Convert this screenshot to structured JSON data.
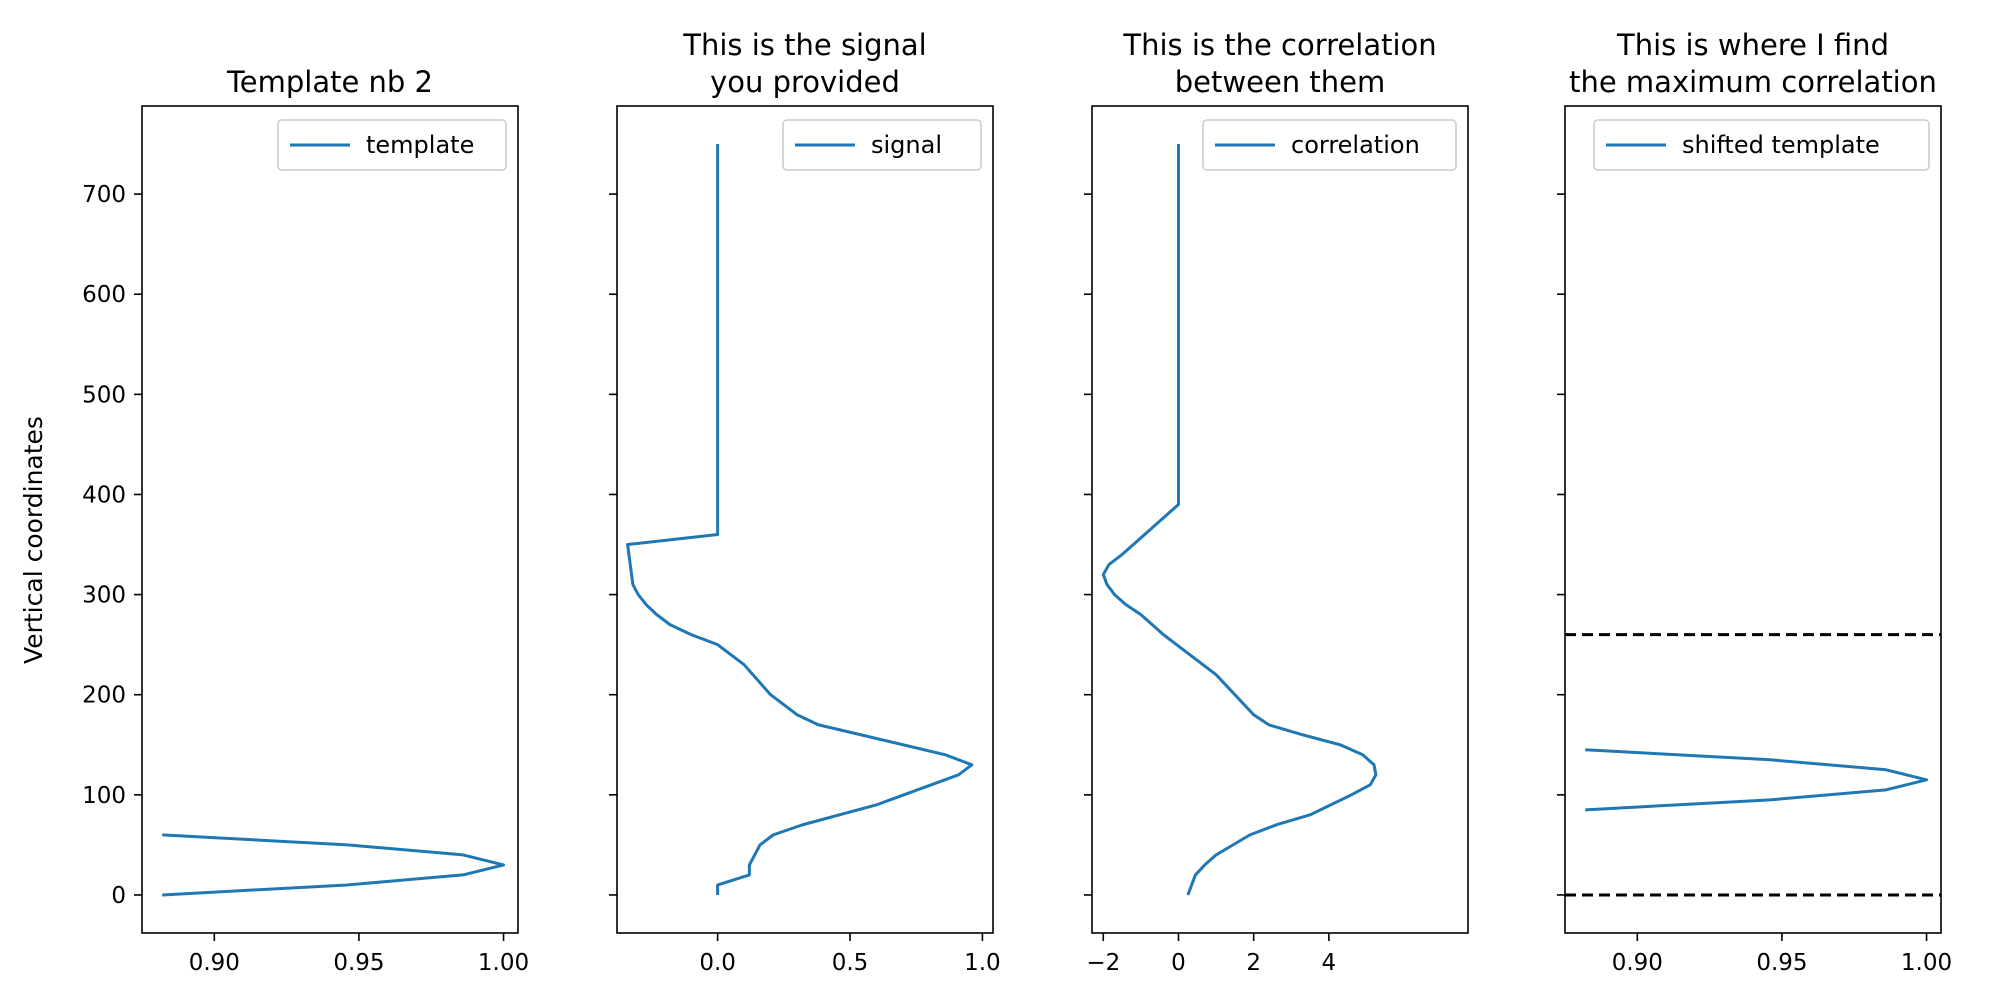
{
  "colors": {
    "series": "#1f77b4",
    "reference": "#000000",
    "frame": "#000000",
    "legend_border": "#cccccc"
  },
  "shared_ylabel": "Vertical coordinates",
  "chart_data": [
    {
      "type": "line",
      "title_lines": [
        "Template nb 2"
      ],
      "xlim": [
        0.875,
        1.005
      ],
      "ylim": [
        -38,
        788
      ],
      "xticks": [
        0.9,
        0.95,
        1.0
      ],
      "xtick_labels": [
        "0.90",
        "0.95",
        "1.00"
      ],
      "yticks": [
        0,
        100,
        200,
        300,
        400,
        500,
        600,
        700
      ],
      "ytick_labels": [
        "0",
        "100",
        "200",
        "300",
        "400",
        "500",
        "600",
        "700"
      ],
      "show_ytick_labels": true,
      "ylabel": "Vertical coordinates",
      "legend_position": "top-right",
      "series": [
        {
          "name": "template",
          "x": [
            0.882,
            0.946,
            0.986,
            1.0,
            0.986,
            0.946,
            0.882
          ],
          "y": [
            0,
            10,
            20,
            30,
            40,
            50,
            60
          ]
        }
      ]
    },
    {
      "type": "line",
      "title_lines": [
        "This is the signal",
        "you provided"
      ],
      "xlim": [
        -0.38,
        1.04
      ],
      "ylim": [
        -38,
        788
      ],
      "xticks": [
        0.0,
        0.5,
        1.0
      ],
      "xtick_labels": [
        "0.0",
        "0.5",
        "1.0"
      ],
      "yticks": [
        0,
        100,
        200,
        300,
        400,
        500,
        600,
        700
      ],
      "ytick_labels": [],
      "show_ytick_labels": false,
      "legend_position": "top-right",
      "series": [
        {
          "name": "signal",
          "x": [
            0.0,
            0.0,
            0.12,
            0.12,
            0.14,
            0.16,
            0.21,
            0.32,
            0.6,
            0.91,
            0.96,
            0.86,
            0.38,
            0.3,
            0.2,
            0.1,
            0.0,
            -0.1,
            -0.18,
            -0.23,
            -0.27,
            -0.3,
            -0.32,
            -0.33,
            -0.34,
            0.0,
            0.0
          ],
          "y": [
            0,
            10,
            20,
            30,
            40,
            50,
            60,
            70,
            90,
            120,
            130,
            140,
            170,
            180,
            200,
            230,
            250,
            260,
            270,
            280,
            290,
            300,
            310,
            330,
            350,
            360,
            750
          ]
        }
      ]
    },
    {
      "type": "line",
      "title_lines": [
        "This is the correlation",
        "between them"
      ],
      "xlim": [
        -2.3,
        7.7
      ],
      "ylim": [
        -38,
        788
      ],
      "xticks": [
        -2,
        0,
        2,
        4
      ],
      "xtick_labels": [
        "−2",
        "0",
        "2",
        "4"
      ],
      "yticks": [
        0,
        100,
        200,
        300,
        400,
        500,
        600,
        700
      ],
      "ytick_labels": [],
      "show_ytick_labels": false,
      "legend_position": "top-right",
      "series": [
        {
          "name": "correlation",
          "x": [
            0.25,
            0.45,
            0.7,
            1.0,
            1.45,
            1.9,
            2.6,
            3.5,
            4.6,
            5.1,
            5.25,
            5.2,
            4.9,
            4.3,
            3.3,
            2.4,
            2.0,
            1.5,
            1.0,
            0.3,
            -0.4,
            -1.0,
            -1.4,
            -1.7,
            -1.9,
            -2.0,
            -1.85,
            -1.5,
            -0.9,
            0.0,
            0.0
          ],
          "y": [
            0,
            20,
            30,
            40,
            50,
            60,
            70,
            80,
            100,
            110,
            120,
            130,
            140,
            150,
            160,
            170,
            180,
            200,
            220,
            240,
            260,
            280,
            290,
            300,
            310,
            320,
            330,
            340,
            360,
            390,
            750
          ]
        }
      ]
    },
    {
      "type": "line",
      "title_lines": [
        "This is where I find",
        "the maximum correlation"
      ],
      "xlim": [
        0.875,
        1.005
      ],
      "ylim": [
        -38,
        788
      ],
      "xticks": [
        0.9,
        0.95,
        1.0
      ],
      "xtick_labels": [
        "0.90",
        "0.95",
        "1.00"
      ],
      "yticks": [
        0,
        100,
        200,
        300,
        400,
        500,
        600,
        700
      ],
      "ytick_labels": [],
      "show_ytick_labels": false,
      "legend_position": "top-right",
      "series": [
        {
          "name": "shifted template",
          "x": [
            0.882,
            0.946,
            0.986,
            1.0,
            0.986,
            0.946,
            0.882
          ],
          "y": [
            85,
            95,
            105,
            115,
            125,
            135,
            145
          ]
        }
      ],
      "reference_lines": [
        {
          "y": 0,
          "style": "dashed"
        },
        {
          "y": 260,
          "style": "dashed"
        }
      ]
    }
  ]
}
